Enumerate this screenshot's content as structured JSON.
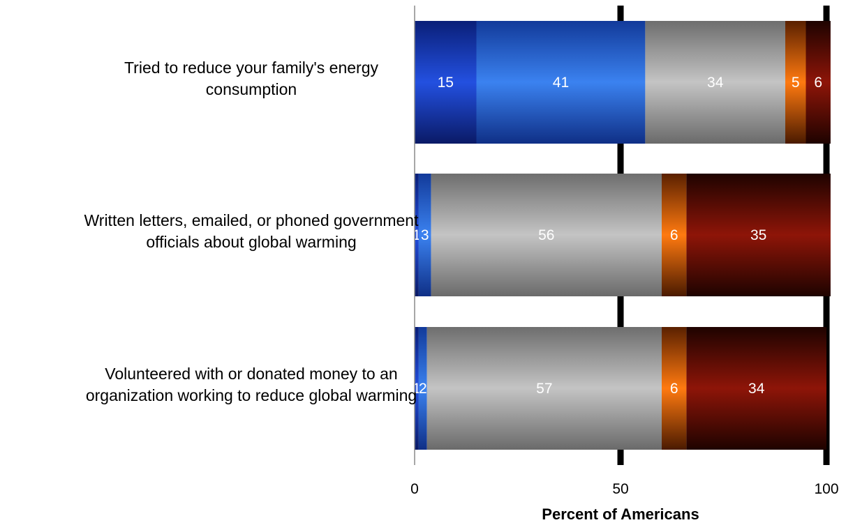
{
  "chart_data": {
    "type": "bar",
    "orientation": "horizontal",
    "stacked": true,
    "categories": [
      [
        "Tried to reduce your family's energy",
        "consumption"
      ],
      [
        "Written letters, emailed, or phoned government",
        "officials about global warming"
      ],
      [
        "Volunteered with or donated money to an",
        "organization working to reduce global warming"
      ]
    ],
    "series": [
      {
        "values": [
          15,
          1,
          1
        ],
        "labels": [
          "15",
          "1",
          "1"
        ],
        "color": "#1f4fd6"
      },
      {
        "values": [
          41,
          3,
          2
        ],
        "labels": [
          "41",
          "3",
          "2"
        ],
        "color": "#2f74e8"
      },
      {
        "values": [
          34,
          56,
          57
        ],
        "labels": [
          "34",
          "56",
          "57"
        ],
        "color": "#a9a9a9"
      },
      {
        "values": [
          5,
          6,
          6
        ],
        "labels": [
          "5",
          "6",
          "6"
        ],
        "color": "#f07818"
      },
      {
        "values": [
          6,
          35,
          34
        ],
        "labels": [
          "6",
          "35",
          "34"
        ],
        "color": "#8a1408"
      }
    ],
    "xlabel": "Percent of Americans",
    "xlim": [
      0,
      100
    ],
    "xticks": [
      0,
      50,
      100
    ],
    "xtick_labels": [
      "0",
      "50",
      "100"
    ],
    "gridlines": [
      50,
      100
    ],
    "legend": "none"
  }
}
